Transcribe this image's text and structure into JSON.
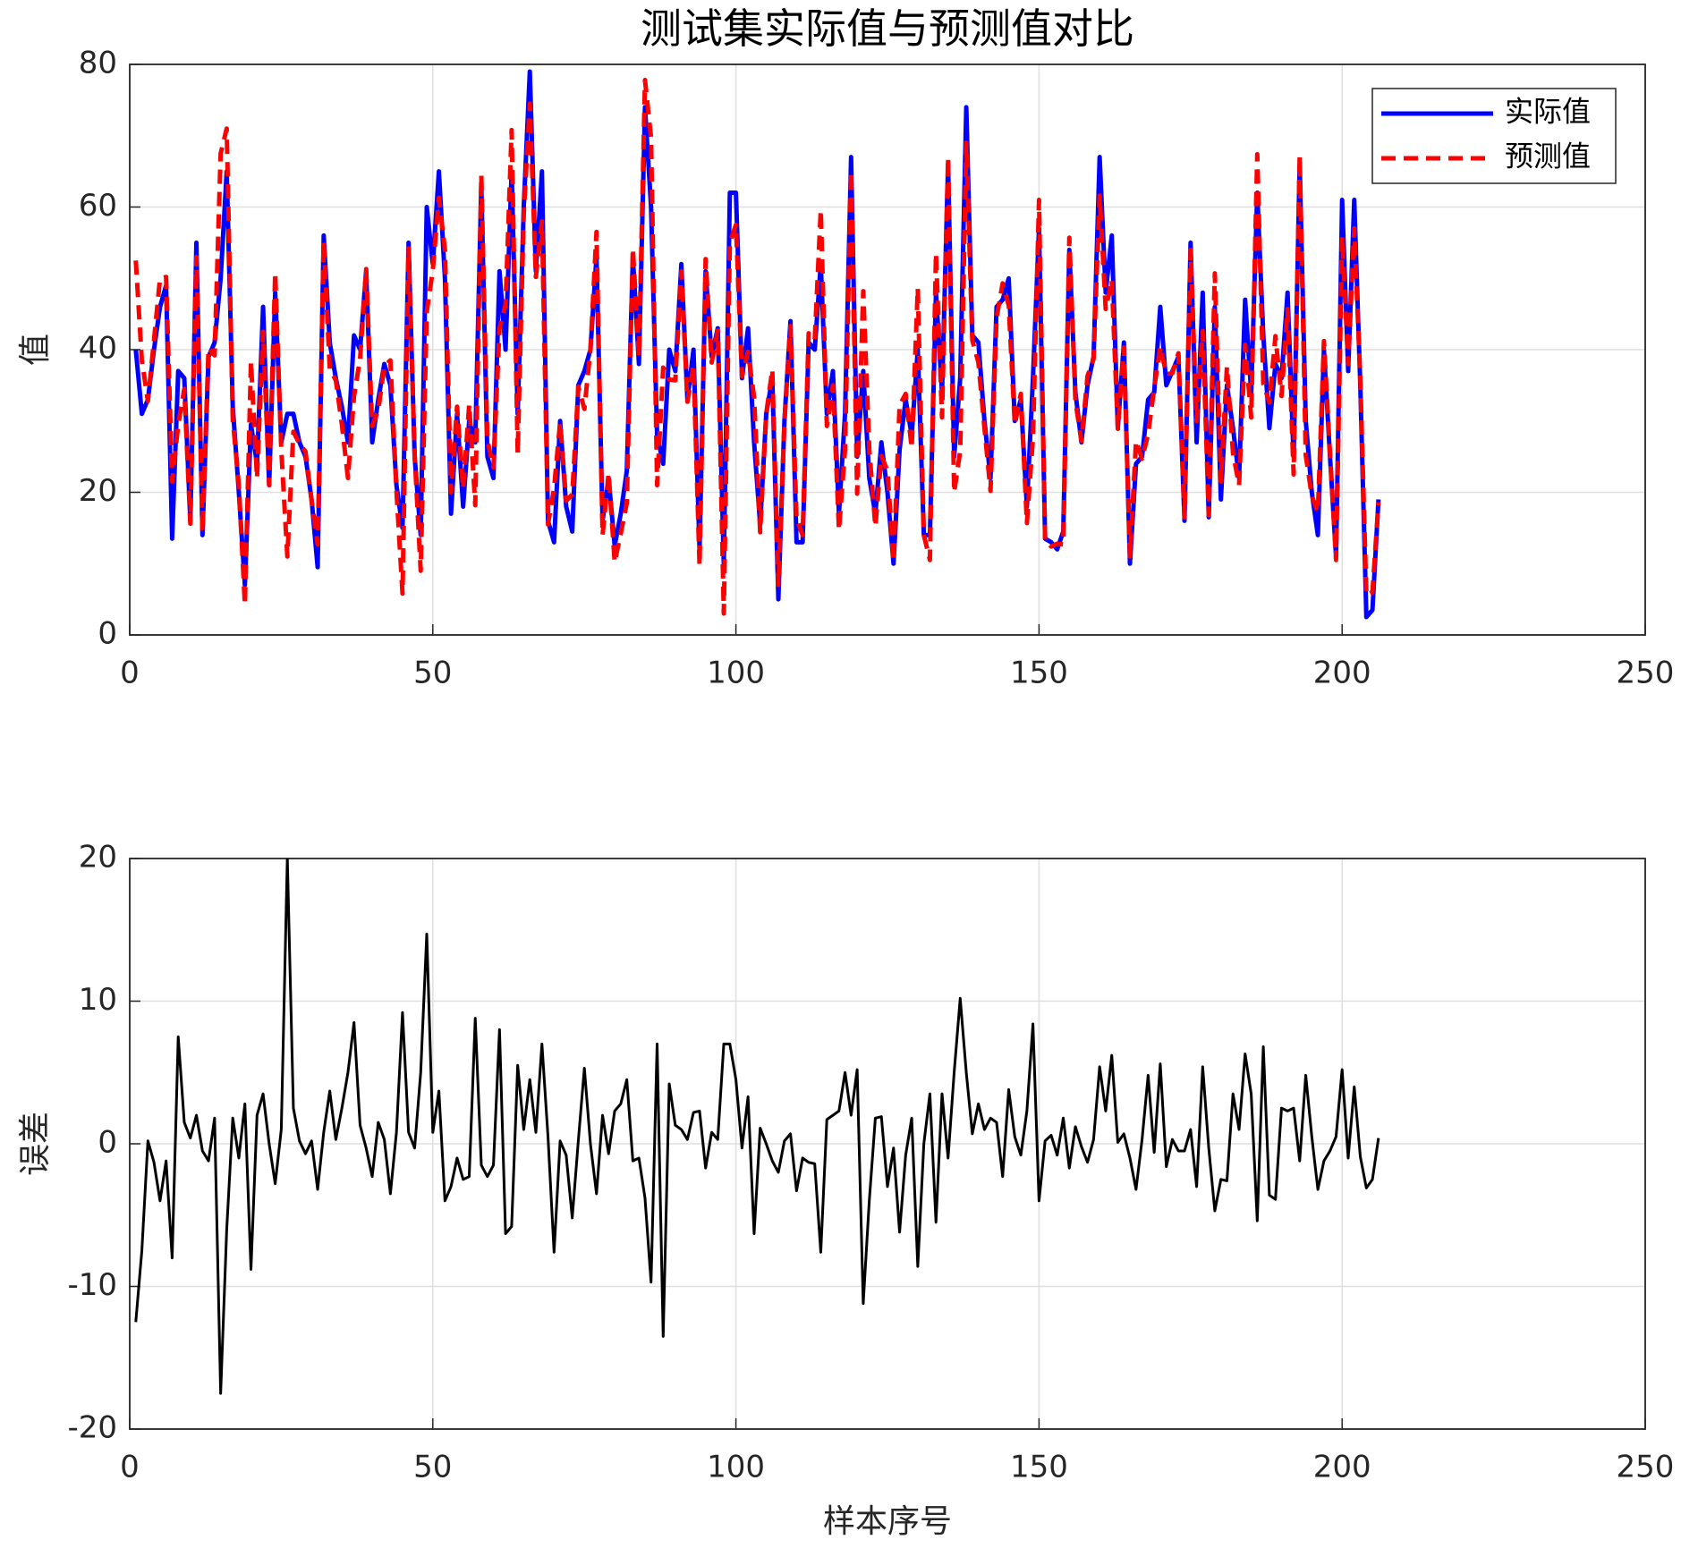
{
  "chart_data": [
    {
      "type": "line",
      "title": "测试集实际值与预测值对比",
      "ylabel": "值",
      "x": [
        1,
        2,
        3,
        4,
        5,
        6,
        7,
        8,
        9,
        10,
        11,
        12,
        13,
        14,
        15,
        16,
        17,
        18,
        19,
        20,
        21,
        22,
        23,
        24,
        25,
        26,
        27,
        28,
        29,
        30,
        31,
        32,
        33,
        34,
        35,
        36,
        37,
        38,
        39,
        40,
        41,
        42,
        43,
        44,
        45,
        46,
        47,
        48,
        49,
        50,
        51,
        52,
        53,
        54,
        55,
        56,
        57,
        58,
        59,
        60,
        61,
        62,
        63,
        64,
        65,
        66,
        67,
        68,
        69,
        70,
        71,
        72,
        73,
        74,
        75,
        76,
        77,
        78,
        79,
        80,
        81,
        82,
        83,
        84,
        85,
        86,
        87,
        88,
        89,
        90,
        91,
        92,
        93,
        94,
        95,
        96,
        97,
        98,
        99,
        100,
        101,
        102,
        103,
        104,
        105,
        106,
        107,
        108,
        109,
        110,
        111,
        112,
        113,
        114,
        115,
        116,
        117,
        118,
        119,
        120,
        121,
        122,
        123,
        124,
        125,
        126,
        127,
        128,
        129,
        130,
        131,
        132,
        133,
        134,
        135,
        136,
        137,
        138,
        139,
        140,
        141,
        142,
        143,
        144,
        145,
        146,
        147,
        148,
        149,
        150,
        151,
        152,
        153,
        154,
        155,
        156,
        157,
        158,
        159,
        160,
        161,
        162,
        163,
        164,
        165,
        166,
        167,
        168,
        169,
        170,
        171,
        172,
        173,
        174,
        175,
        176,
        177,
        178,
        179,
        180,
        181,
        182,
        183,
        184,
        185,
        186,
        187,
        188,
        189,
        190,
        191,
        192,
        193,
        194,
        195,
        196,
        197,
        198,
        199,
        200,
        201,
        202,
        203,
        204,
        205,
        206
      ],
      "series": [
        {
          "name": "实际值",
          "color": "#0000ff",
          "style": "solid",
          "values": [
            40,
            31,
            33,
            40,
            46,
            49,
            13.5,
            37,
            36,
            16,
            55,
            14,
            39,
            41,
            50,
            65,
            32,
            20,
            7,
            29.5,
            24,
            46,
            21,
            48,
            27,
            31,
            31,
            27,
            25,
            19,
            9.5,
            56,
            41,
            36,
            32,
            27,
            42,
            40,
            51,
            27,
            33,
            38,
            35,
            21,
            15,
            55,
            25,
            14,
            60,
            52,
            65,
            50,
            17,
            31,
            18,
            30,
            27,
            63,
            25,
            22,
            51,
            40,
            65,
            31,
            60,
            79,
            51,
            65,
            16,
            13,
            30,
            18,
            14.5,
            35,
            37,
            40,
            53,
            16,
            22,
            12.5,
            17,
            23,
            53,
            38,
            74,
            60,
            28,
            24,
            40,
            37,
            52,
            33,
            40,
            12,
            51,
            39,
            43,
            10,
            62,
            62,
            36,
            43,
            27,
            15.5,
            31,
            36,
            5,
            30,
            44,
            13,
            13,
            41,
            40,
            52,
            31,
            37,
            17,
            31,
            67,
            25,
            37,
            22,
            17,
            27,
            20,
            10,
            26,
            33,
            28,
            40,
            14,
            14,
            48,
            34,
            66,
            25,
            36,
            74,
            42,
            41,
            30,
            22,
            46,
            47,
            50,
            30,
            33,
            18,
            36,
            57,
            13.5,
            13,
            12,
            14.5,
            54,
            34,
            27,
            35,
            39,
            67,
            48,
            56,
            29,
            41,
            10,
            24,
            25,
            33,
            34,
            46,
            35,
            37,
            39,
            16,
            55,
            27,
            48,
            16.5,
            46,
            19,
            35,
            29,
            22,
            47,
            34,
            62,
            42,
            29,
            38,
            36,
            48,
            25,
            66,
            30,
            20,
            14,
            40,
            25,
            11,
            61,
            37,
            61,
            35,
            2.5,
            3.5,
            19
          ]
        },
        {
          "name": "预测值",
          "color": "#ff0000",
          "style": "dashed",
          "values": [
            52.5,
            38.5,
            32.8,
            41.3,
            50,
            50.2,
            21.5,
            29.5,
            34.5,
            15.6,
            53,
            14.5,
            40.2,
            39.2,
            67.5,
            71,
            30.2,
            21,
            4.2,
            38.3,
            22,
            42.5,
            21,
            50.8,
            26,
            11,
            28.5,
            26.8,
            25.7,
            18.8,
            12.7,
            55.2,
            37.3,
            35.7,
            29.5,
            22,
            33.5,
            38.7,
            51.3,
            29.3,
            31.5,
            37.7,
            38.5,
            20.2,
            5.8,
            54.2,
            25.3,
            9,
            45.3,
            51.2,
            61.3,
            54,
            20,
            32,
            20.5,
            32.3,
            18.2,
            64.5,
            27.3,
            23.5,
            43,
            46.3,
            70.8,
            25.5,
            59,
            74.5,
            50.2,
            58,
            15.5,
            20.6,
            29.8,
            18.8,
            19.7,
            34.8,
            31.7,
            40,
            56.5,
            14,
            22.7,
            10.2,
            14.2,
            18.5,
            54.2,
            39,
            77.8,
            69.7,
            21,
            37.5,
            35.8,
            35.7,
            51,
            32.7,
            37.8,
            9.7,
            52.7,
            38.2,
            42.7,
            3,
            55,
            57.5,
            36.3,
            39.7,
            33.3,
            14.4,
            31,
            37.2,
            7,
            29.8,
            43.3,
            16.3,
            14,
            42.3,
            41.4,
            59.6,
            29.3,
            35,
            14.7,
            26,
            65,
            19.8,
            48.2,
            26,
            15.2,
            25.1,
            23,
            10.3,
            32.2,
            33.8,
            26.2,
            48.6,
            14,
            10.5,
            53.5,
            30.5,
            67,
            20,
            25.8,
            69,
            41.3,
            38.2,
            29,
            20.2,
            44.5,
            49.3,
            46.2,
            29.5,
            33.8,
            15.7,
            27.6,
            61,
            13.3,
            12.4,
            12.8,
            12.7,
            55.7,
            32.8,
            27.2,
            36.3,
            38.7,
            61.6,
            45.7,
            49.8,
            28.9,
            40.3,
            11,
            27.2,
            24.7,
            28.2,
            34.6,
            40.4,
            36.6,
            36.7,
            39.5,
            16.5,
            54,
            30,
            42.6,
            16.8,
            50.7,
            21.5,
            37.6,
            25.5,
            21,
            40.7,
            30.5,
            67.4,
            35.2,
            32.6,
            41.9,
            33.5,
            45.7,
            22.5,
            67.2,
            25.2,
            19.5,
            17.2,
            41.2,
            25.5,
            10.5,
            55.8,
            38,
            57,
            35.9,
            5.6,
            6,
            18.6
          ]
        }
      ],
      "xlim": [
        0,
        250
      ],
      "xticks": [
        0,
        50,
        100,
        150,
        200,
        250
      ],
      "ylim": [
        0,
        80
      ],
      "yticks": [
        0,
        20,
        40,
        60,
        80
      ],
      "grid": true,
      "legend": "upper right"
    },
    {
      "type": "line",
      "xlabel": "样本序号",
      "ylabel": "误差",
      "x": [
        1,
        2,
        3,
        4,
        5,
        6,
        7,
        8,
        9,
        10,
        11,
        12,
        13,
        14,
        15,
        16,
        17,
        18,
        19,
        20,
        21,
        22,
        23,
        24,
        25,
        26,
        27,
        28,
        29,
        30,
        31,
        32,
        33,
        34,
        35,
        36,
        37,
        38,
        39,
        40,
        41,
        42,
        43,
        44,
        45,
        46,
        47,
        48,
        49,
        50,
        51,
        52,
        53,
        54,
        55,
        56,
        57,
        58,
        59,
        60,
        61,
        62,
        63,
        64,
        65,
        66,
        67,
        68,
        69,
        70,
        71,
        72,
        73,
        74,
        75,
        76,
        77,
        78,
        79,
        80,
        81,
        82,
        83,
        84,
        85,
        86,
        87,
        88,
        89,
        90,
        91,
        92,
        93,
        94,
        95,
        96,
        97,
        98,
        99,
        100,
        101,
        102,
        103,
        104,
        105,
        106,
        107,
        108,
        109,
        110,
        111,
        112,
        113,
        114,
        115,
        116,
        117,
        118,
        119,
        120,
        121,
        122,
        123,
        124,
        125,
        126,
        127,
        128,
        129,
        130,
        131,
        132,
        133,
        134,
        135,
        136,
        137,
        138,
        139,
        140,
        141,
        142,
        143,
        144,
        145,
        146,
        147,
        148,
        149,
        150,
        151,
        152,
        153,
        154,
        155,
        156,
        157,
        158,
        159,
        160,
        161,
        162,
        163,
        164,
        165,
        166,
        167,
        168,
        169,
        170,
        171,
        172,
        173,
        174,
        175,
        176,
        177,
        178,
        179,
        180,
        181,
        182,
        183,
        184,
        185,
        186,
        187,
        188,
        189,
        190,
        191,
        192,
        193,
        194,
        195,
        196,
        197,
        198,
        199,
        200,
        201,
        202,
        203,
        204,
        205,
        206
      ],
      "series": [
        {
          "color": "#000000",
          "style": "solid",
          "values": [
            -12.5,
            -7.5,
            0.2,
            -1.3,
            -4,
            -1.2,
            -8,
            7.5,
            1.5,
            0.4,
            2,
            -0.5,
            -1.2,
            1.8,
            -17.5,
            -6,
            1.8,
            -1,
            2.8,
            -8.8,
            2,
            3.5,
            0,
            -2.8,
            1,
            20,
            2.5,
            0.2,
            -0.7,
            0.2,
            -3.2,
            0.8,
            3.7,
            0.3,
            2.5,
            5,
            8.5,
            1.3,
            -0.3,
            -2.3,
            1.5,
            0.3,
            -3.5,
            0.8,
            9.2,
            0.8,
            -0.3,
            5,
            14.7,
            0.8,
            3.7,
            -4,
            -3,
            -1,
            -2.5,
            -2.3,
            8.8,
            -1.5,
            -2.3,
            -1.5,
            8,
            -6.3,
            -5.8,
            5.5,
            1,
            4.5,
            0.8,
            7,
            0.5,
            -7.6,
            0.2,
            -0.8,
            -5.2,
            0.2,
            5.3,
            0,
            -3.5,
            2,
            -0.7,
            2.3,
            2.8,
            4.5,
            -1.2,
            -1,
            -3.8,
            -9.7,
            7,
            -13.5,
            4.2,
            1.3,
            1,
            0.3,
            2.2,
            2.3,
            -1.7,
            0.8,
            0.3,
            7,
            7,
            4.5,
            -0.3,
            3.3,
            -6.3,
            1.1,
            0,
            -1.2,
            -2,
            0.2,
            0.7,
            -3.3,
            -1,
            -1.3,
            -1.4,
            -7.6,
            1.7,
            2,
            2.3,
            5,
            2,
            5.2,
            -11.2,
            -4,
            1.8,
            1.9,
            -3,
            -0.3,
            -6.2,
            -0.8,
            1.8,
            -8.6,
            0,
            3.5,
            -5.5,
            3.5,
            -1,
            5,
            10.2,
            5,
            0.7,
            2.8,
            1,
            1.8,
            1.5,
            -2.3,
            3.8,
            0.5,
            -0.8,
            2.3,
            8.4,
            -4,
            0.2,
            0.6,
            -0.8,
            1.8,
            -1.7,
            1.2,
            -0.2,
            -1.3,
            0.3,
            5.4,
            2.3,
            6.2,
            0.1,
            0.7,
            -1,
            -3.2,
            0.3,
            4.8,
            -0.6,
            5.6,
            -1.6,
            0.3,
            -0.5,
            -0.5,
            1,
            -3,
            5.4,
            -0.3,
            -4.7,
            -2.5,
            -2.6,
            3.5,
            1,
            6.3,
            3.5,
            -5.4,
            6.8,
            -3.6,
            -3.9,
            2.5,
            2.3,
            2.5,
            -1.2,
            4.8,
            0.5,
            -3.2,
            -1.2,
            -0.5,
            0.5,
            5.2,
            -1,
            4,
            -0.9,
            -3.1,
            -2.5,
            0.4
          ]
        }
      ],
      "xlim": [
        0,
        250
      ],
      "xticks": [
        0,
        50,
        100,
        150,
        200,
        250
      ],
      "ylim": [
        -20,
        20
      ],
      "yticks": [
        -20,
        -10,
        0,
        10,
        20
      ],
      "grid": true
    }
  ]
}
